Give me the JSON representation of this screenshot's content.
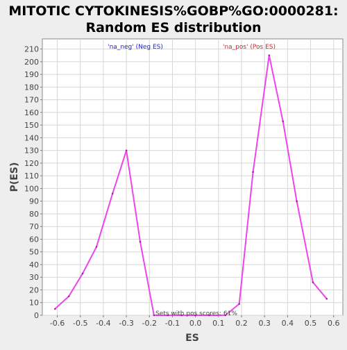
{
  "chart_data": {
    "type": "line",
    "title_lines": [
      "MITOTIC CYTOKINESIS%GOBP%GO:0000281:",
      "Random ES distribution"
    ],
    "xlabel": "ES",
    "ylabel": "P(ES)",
    "xlim": [
      -0.665,
      0.64
    ],
    "ylim": [
      0,
      218
    ],
    "x_ticks": [
      -0.6,
      -0.5,
      -0.4,
      -0.3,
      -0.2,
      -0.1,
      0.0,
      0.1,
      0.2,
      0.3,
      0.4,
      0.5,
      0.6
    ],
    "x_tick_labels": [
      "-0.6",
      "-0.5",
      "-0.4",
      "-0.3",
      "-0.2",
      "-0.1",
      "0.0",
      "0.1",
      "0.2",
      "0.3",
      "0.4",
      "0.5",
      "0.6"
    ],
    "y_ticks": [
      0,
      10,
      20,
      30,
      40,
      50,
      60,
      70,
      80,
      90,
      100,
      110,
      120,
      130,
      140,
      150,
      160,
      170,
      180,
      190,
      200,
      210
    ],
    "y_tick_labels": [
      "0",
      "10",
      "20",
      "30",
      "40",
      "50",
      "60",
      "70",
      "80",
      "90",
      "100",
      "110",
      "120",
      "130",
      "140",
      "150",
      "160",
      "170",
      "180",
      "190",
      "200",
      "210"
    ],
    "grid": true,
    "series": [
      {
        "color": "#ee44ee",
        "x": [
          -0.61,
          -0.55,
          -0.49,
          -0.43,
          -0.36,
          -0.3,
          -0.24,
          -0.18,
          -0.12,
          -0.06,
          0.0,
          0.06,
          0.13,
          0.19,
          0.25,
          0.32,
          0.38,
          0.44,
          0.51,
          0.57
        ],
        "y": [
          5,
          15,
          33,
          54,
          96,
          130,
          58,
          0,
          0,
          0,
          0,
          0,
          0,
          9,
          113,
          205,
          153,
          90,
          26,
          13
        ]
      }
    ],
    "annotations": [
      {
        "text": "'na_neg' (Neg ES)",
        "color": "#2222cc"
      },
      {
        "text": "'na_pos' (Pos ES)",
        "color": "#dd2222"
      },
      {
        "text": "Sets with pos scores: 61%",
        "color": "#444444"
      }
    ]
  }
}
